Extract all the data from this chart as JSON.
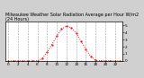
{
  "title": "Milwaukee Weather Solar Radiation Average per Hour W/m2 (24 Hours)",
  "hours": [
    0,
    1,
    2,
    3,
    4,
    5,
    6,
    7,
    8,
    9,
    10,
    11,
    12,
    13,
    14,
    15,
    16,
    17,
    18,
    19,
    20,
    21,
    22,
    23
  ],
  "values": [
    0,
    0,
    0,
    0,
    0,
    0,
    2,
    30,
    120,
    230,
    350,
    450,
    490,
    470,
    390,
    280,
    160,
    60,
    10,
    0,
    0,
    0,
    0,
    0
  ],
  "line_color": "red",
  "bg_color": "#d0d0d0",
  "plot_bg": "#ffffff",
  "grid_color": "#888888",
  "ylim": [
    0,
    550
  ],
  "xlim": [
    -0.5,
    23.5
  ],
  "title_fontsize": 3.5,
  "tick_fontsize": 3.0,
  "xtick_vals": [
    0,
    2,
    4,
    6,
    8,
    10,
    12,
    14,
    16,
    18,
    20,
    22
  ],
  "ytick_vals": [
    0,
    100,
    200,
    300,
    400,
    500
  ],
  "ytick_labels": [
    "0",
    "1",
    "2",
    "3",
    "4",
    "5"
  ],
  "grid_xticks": [
    0,
    2,
    4,
    6,
    8,
    10,
    12,
    14,
    16,
    18,
    20,
    22
  ]
}
